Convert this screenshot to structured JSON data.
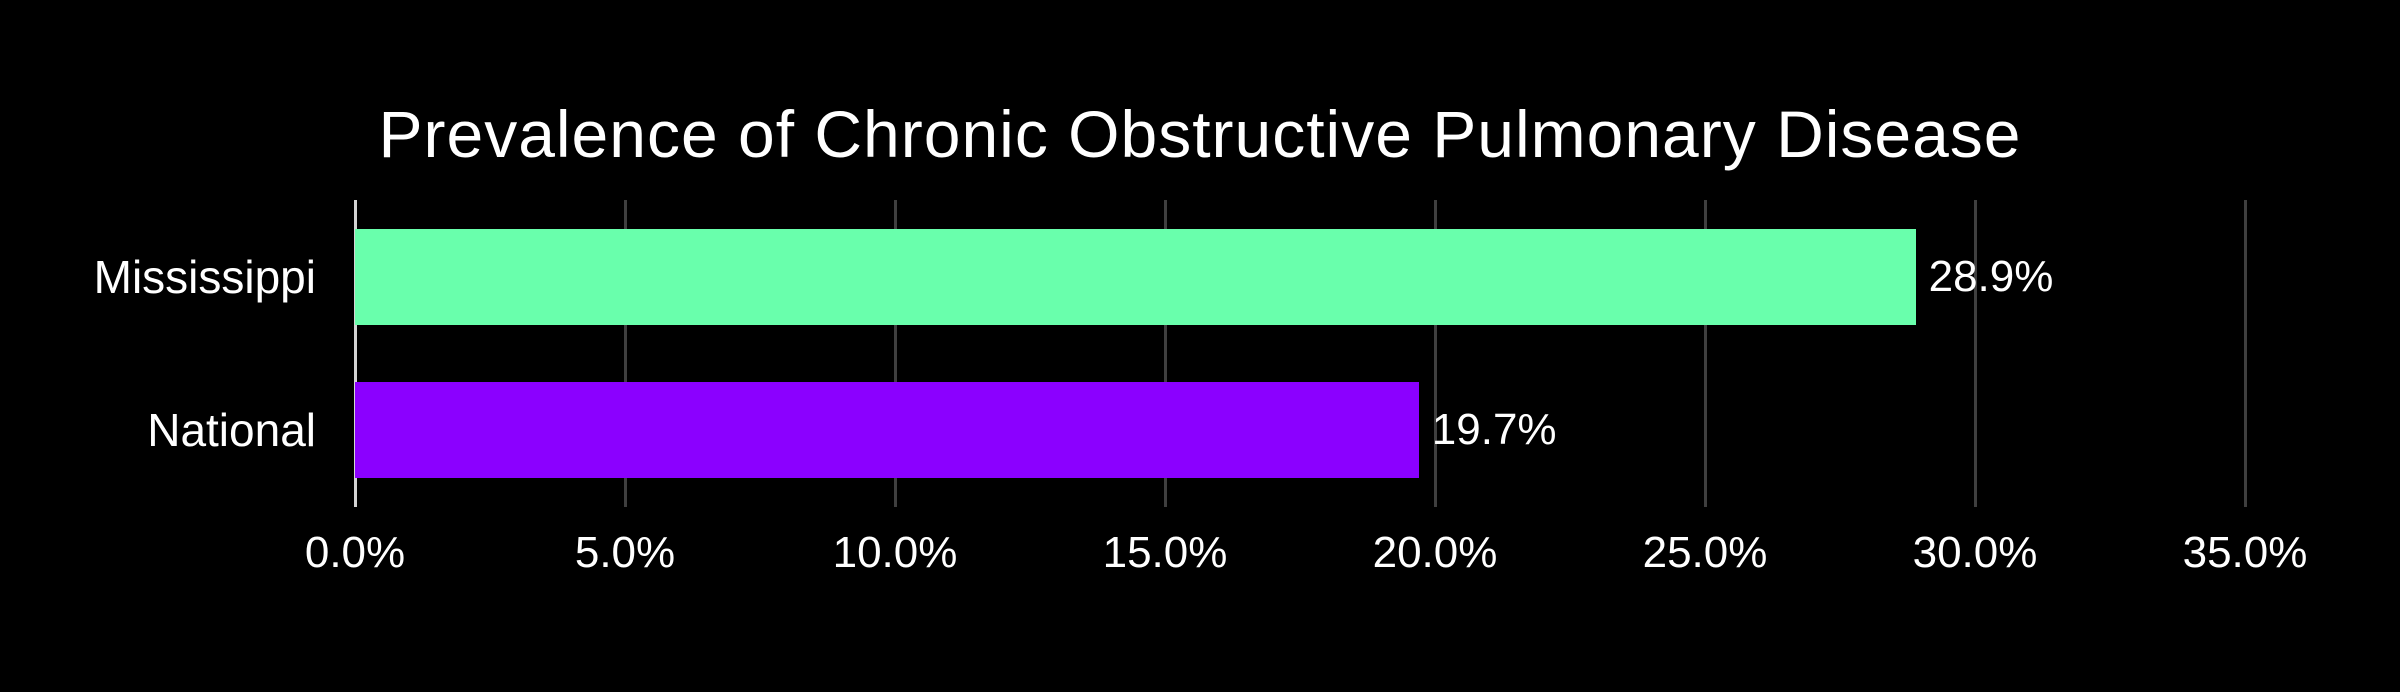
{
  "title": "Prevalence of Chronic Obstructive Pulmonary Disease",
  "chart_data": {
    "type": "bar",
    "orientation": "horizontal",
    "title": "Prevalence of Chronic Obstructive Pulmonary Disease",
    "categories": [
      "Mississippi",
      "National"
    ],
    "values": [
      28.9,
      19.7
    ],
    "value_labels": [
      "28.9%",
      "19.7%"
    ],
    "series": [
      {
        "name": "Mississippi",
        "value": 28.9,
        "label": "28.9%",
        "color": "#69ffac"
      },
      {
        "name": "National",
        "value": 19.7,
        "label": "19.7%",
        "color": "#8b00ff"
      }
    ],
    "xlabel": "",
    "ylabel": "",
    "xlim": [
      0,
      35
    ],
    "x_ticks": [
      0,
      5,
      10,
      15,
      20,
      25,
      30,
      35
    ],
    "x_tick_labels": [
      "0.0%",
      "5.0%",
      "10.0%",
      "15.0%",
      "20.0%",
      "25.0%",
      "30.0%",
      "35.0%"
    ],
    "grid": "vertical-only",
    "legend_position": "none",
    "colors": {
      "background": "#000000",
      "text": "#ffffff",
      "gridline": "#3f3f3f",
      "axis_line": "#d4d4d4"
    }
  }
}
